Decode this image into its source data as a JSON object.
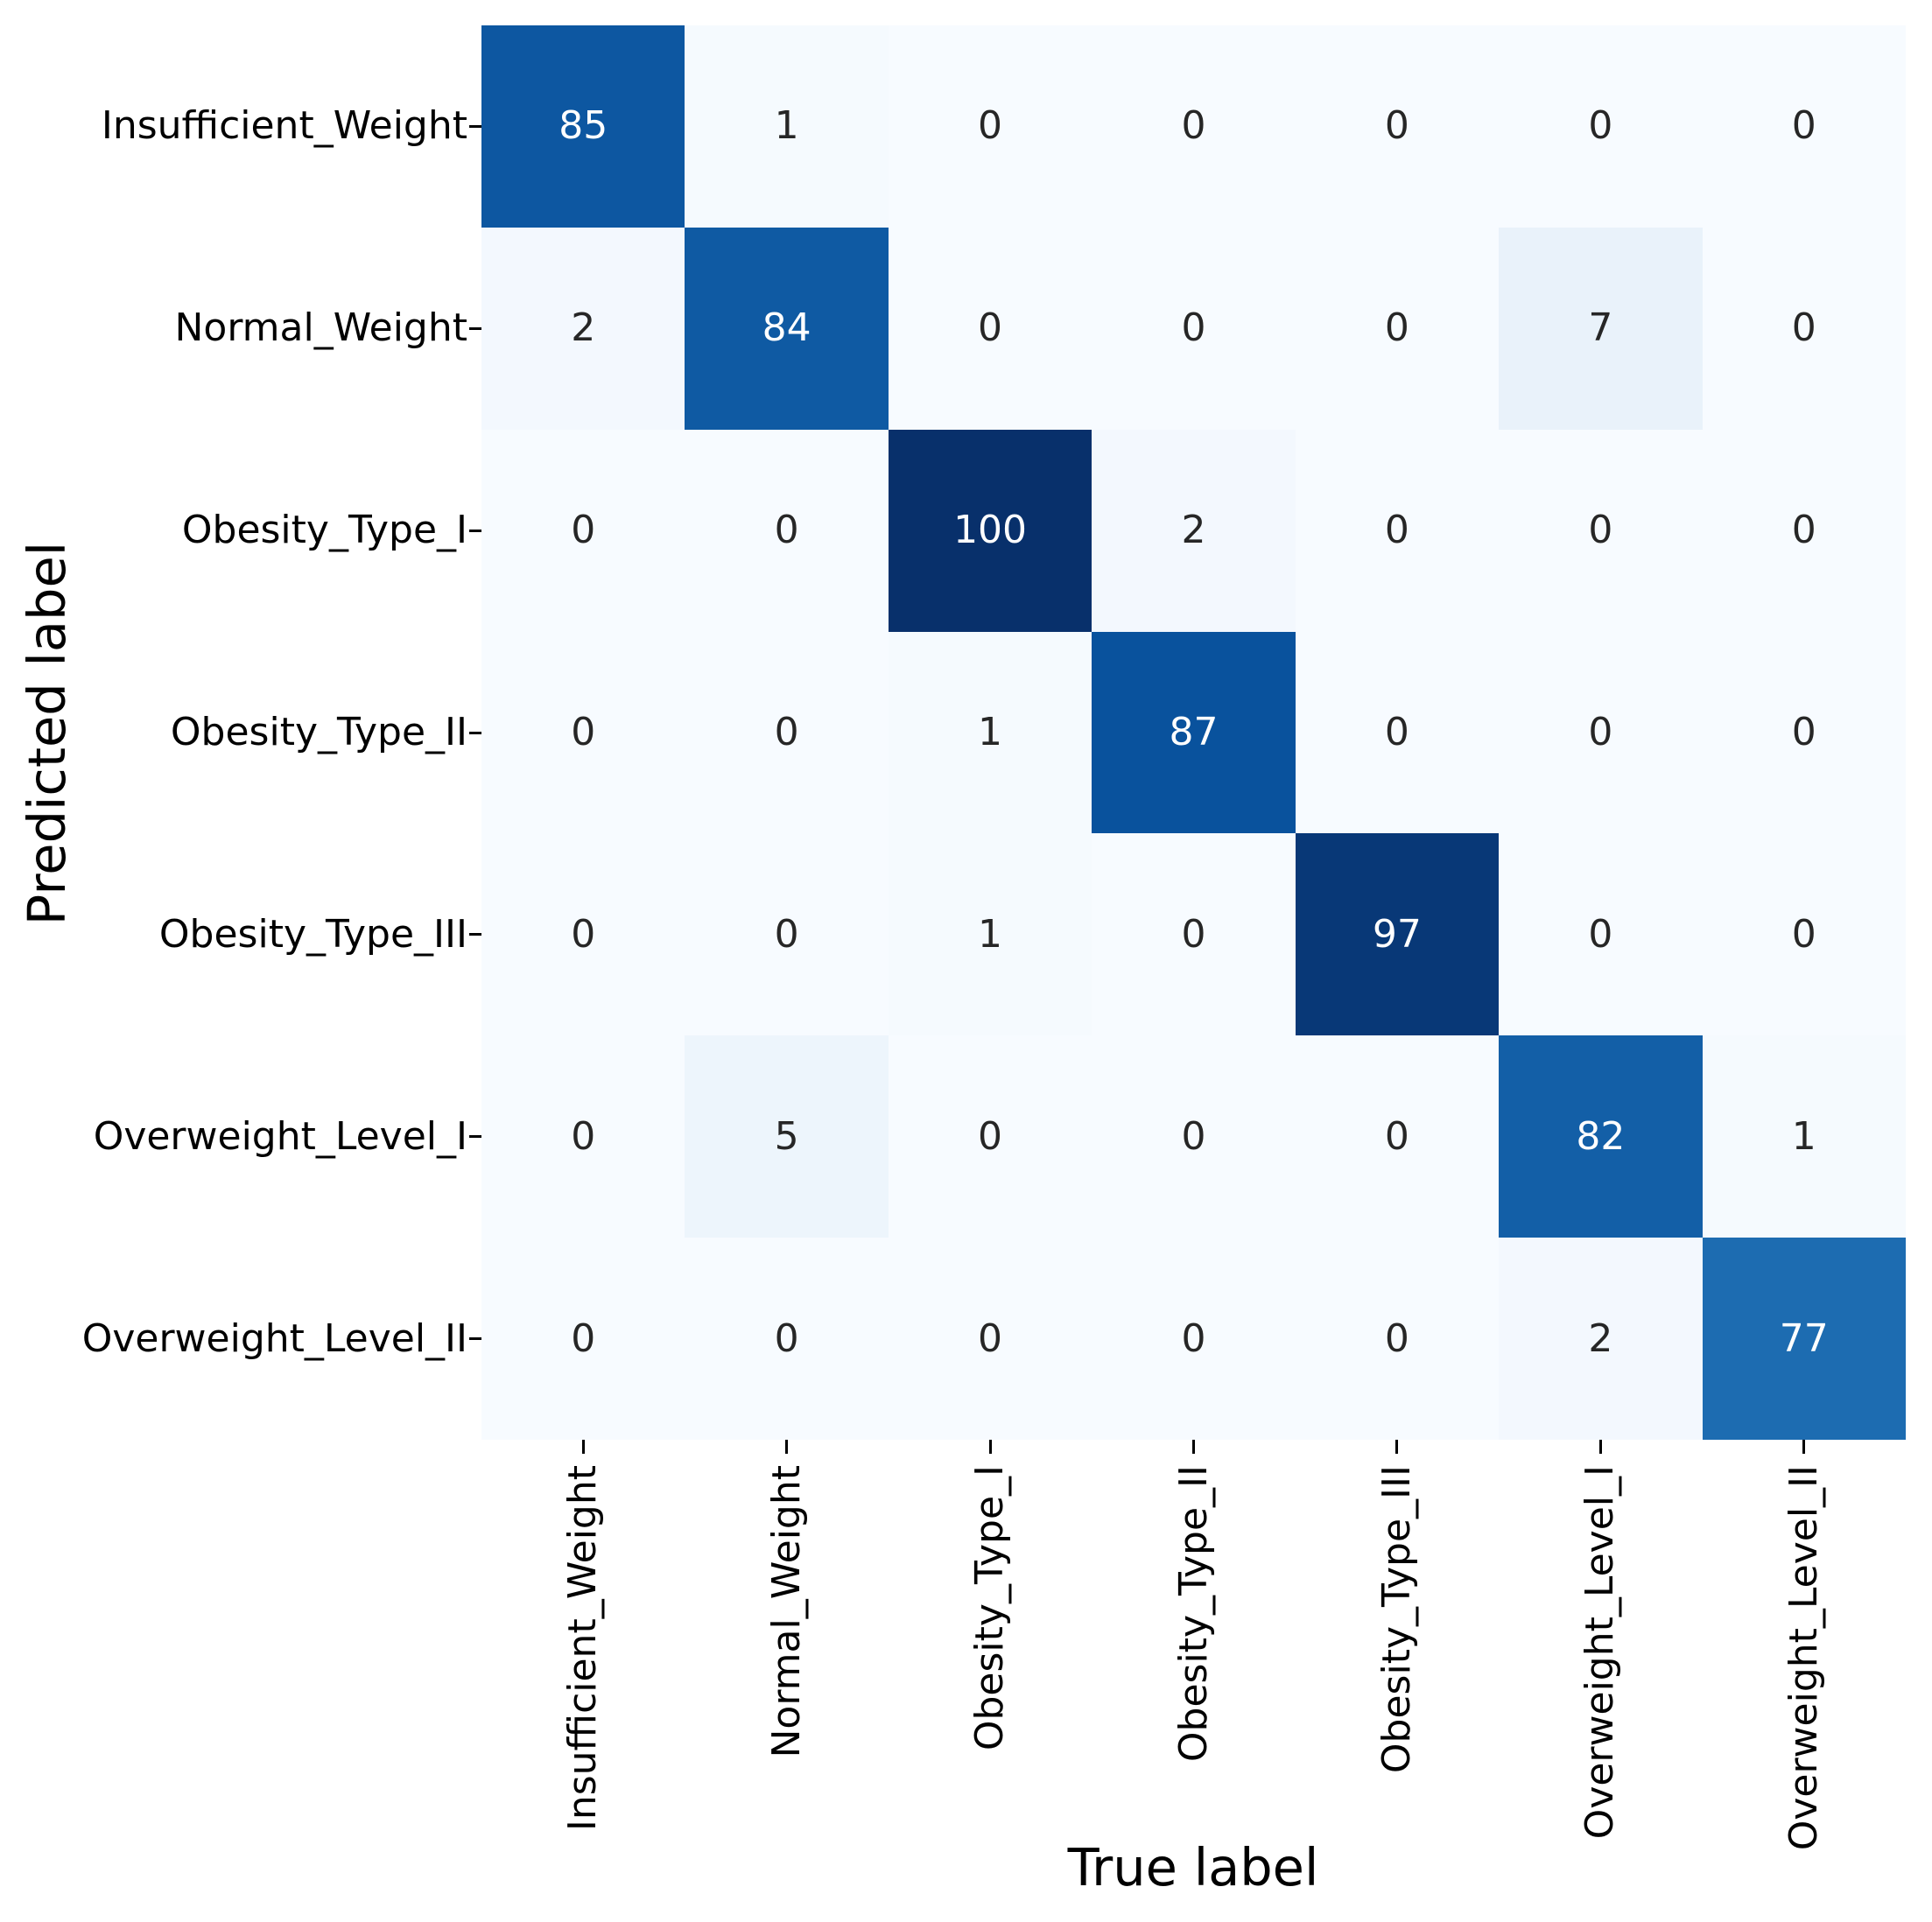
{
  "chart_data": {
    "type": "heatmap",
    "title": "",
    "xlabel": "True label",
    "ylabel": "Predicted label",
    "x_tick_labels": [
      "Insufficient_Weight",
      "Normal_Weight",
      "Obesity_Type_I",
      "Obesity_Type_II",
      "Obesity_Type_III",
      "Overweight_Level_I",
      "Overweight_Level_II"
    ],
    "y_tick_labels": [
      "Insufficient_Weight",
      "Normal_Weight",
      "Obesity_Type_I",
      "Obesity_Type_II",
      "Obesity_Type_III",
      "Overweight_Level_I",
      "Overweight_Level_II"
    ],
    "matrix": [
      [
        85,
        1,
        0,
        0,
        0,
        0,
        0
      ],
      [
        2,
        84,
        0,
        0,
        0,
        7,
        0
      ],
      [
        0,
        0,
        100,
        2,
        0,
        0,
        0
      ],
      [
        0,
        0,
        1,
        87,
        0,
        0,
        0
      ],
      [
        0,
        0,
        1,
        0,
        97,
        0,
        0
      ],
      [
        0,
        5,
        0,
        0,
        0,
        82,
        1
      ],
      [
        0,
        0,
        0,
        0,
        0,
        2,
        77
      ]
    ],
    "colormap": "Blues",
    "vmin": 0,
    "vmax": 100,
    "grid": "off",
    "legend": "none",
    "annotations": "on",
    "value_colors": {
      "0": "#f7fbff",
      "1": "#f5fafe",
      "2": "#f3f8fe",
      "5": "#edf5fc",
      "7": "#e9f2fa",
      "77": "#1d6cb1",
      "82": "#135fa7",
      "84": "#0f5aa3",
      "85": "#0d57a1",
      "87": "#09529d",
      "97": "#083877",
      "100": "#08306b"
    },
    "white_text_threshold": 40
  },
  "colors": {
    "figure_background": "#ffffff",
    "tick_color": "#000000",
    "tick_label_color": "#000000",
    "axis_label_color": "#000000",
    "annotation_dark_cell_text": "#ffffff",
    "annotation_light_cell_text": "#262626"
  }
}
